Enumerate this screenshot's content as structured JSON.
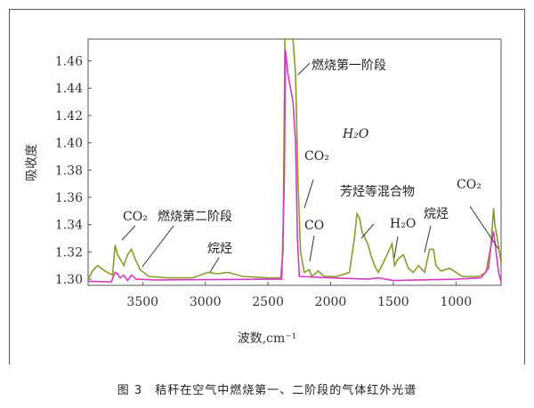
{
  "caption": {
    "figure_no": "图 3",
    "text": "秸秆在空气中燃烧第一、二阶段的气体红外光谱"
  },
  "chart_data": {
    "type": "line",
    "title": "",
    "xlabel": "波数,cm⁻¹",
    "ylabel": "吸收度",
    "xlim": [
      3935,
      640
    ],
    "ylim": [
      1.2955,
      1.476
    ],
    "x_reversed": true,
    "xticks": [
      3500,
      3000,
      2500,
      2000,
      1500,
      1000
    ],
    "xtick_labels": [
      "3500",
      "3000",
      "2500",
      "2000",
      "1500",
      "1000"
    ],
    "yticks": [
      1.3,
      1.32,
      1.34,
      1.36,
      1.38,
      1.4,
      1.42,
      1.44,
      1.46
    ],
    "ytick_labels": [
      "1.30",
      "1.32",
      "1.34",
      "1.36",
      "1.38",
      "1.40",
      "1.42",
      "1.44",
      "1.46"
    ],
    "grid": false,
    "series": [
      {
        "name": "燃烧第一阶段",
        "color": "#8c9a2c",
        "x": [
          3935,
          3900,
          3860,
          3800,
          3740,
          3720,
          3700,
          3680,
          3650,
          3620,
          3590,
          3560,
          3520,
          3450,
          3300,
          3100,
          2980,
          2900,
          2820,
          2700,
          2500,
          2400,
          2380,
          2365,
          2300,
          2280,
          2260,
          2240,
          2210,
          2170,
          2150,
          2100,
          2050,
          1950,
          1850,
          1810,
          1790,
          1770,
          1750,
          1700,
          1680,
          1650,
          1620,
          1580,
          1540,
          1510,
          1490,
          1460,
          1420,
          1380,
          1340,
          1300,
          1250,
          1210,
          1180,
          1160,
          1120,
          1050,
          1000,
          950,
          820,
          760,
          720,
          700,
          690,
          670,
          650,
          640
        ],
        "y": [
          1.3,
          1.306,
          1.31,
          1.306,
          1.303,
          1.325,
          1.318,
          1.315,
          1.31,
          1.318,
          1.322,
          1.315,
          1.307,
          1.302,
          1.301,
          1.301,
          1.305,
          1.304,
          1.305,
          1.302,
          1.301,
          1.301,
          1.32,
          1.476,
          1.476,
          1.45,
          1.37,
          1.32,
          1.305,
          1.307,
          1.302,
          1.306,
          1.302,
          1.302,
          1.305,
          1.33,
          1.348,
          1.345,
          1.335,
          1.325,
          1.318,
          1.31,
          1.305,
          1.312,
          1.32,
          1.326,
          1.31,
          1.315,
          1.318,
          1.308,
          1.305,
          1.31,
          1.305,
          1.322,
          1.322,
          1.31,
          1.306,
          1.308,
          1.305,
          1.302,
          1.302,
          1.305,
          1.325,
          1.352,
          1.34,
          1.33,
          1.318,
          1.312
        ]
      },
      {
        "name": "燃烧第二阶段",
        "color": "#d23cbe",
        "x": [
          3935,
          3750,
          3720,
          3700,
          3680,
          3650,
          3620,
          3590,
          3550,
          3400,
          2500,
          2390,
          2370,
          2360,
          2340,
          2320,
          2300,
          2280,
          2265,
          2250,
          2000,
          1700,
          1620,
          1500,
          1000,
          800,
          740,
          720,
          700,
          680,
          660,
          640
        ],
        "y": [
          1.2985,
          1.298,
          1.305,
          1.304,
          1.301,
          1.303,
          1.299,
          1.303,
          1.3,
          1.2995,
          1.3,
          1.3,
          1.37,
          1.468,
          1.45,
          1.44,
          1.43,
          1.4,
          1.33,
          1.302,
          1.301,
          1.3,
          1.301,
          1.299,
          1.3,
          1.301,
          1.308,
          1.325,
          1.335,
          1.32,
          1.305,
          1.298
        ]
      }
    ],
    "annotations": [
      "燃烧第一阶段",
      "H₂O",
      "CO₂",
      "CO",
      "芳烃等混合物",
      "H₂O",
      "烷烃",
      "CO₂",
      "CO₂",
      "燃烧第二阶段",
      "烷烃"
    ]
  }
}
